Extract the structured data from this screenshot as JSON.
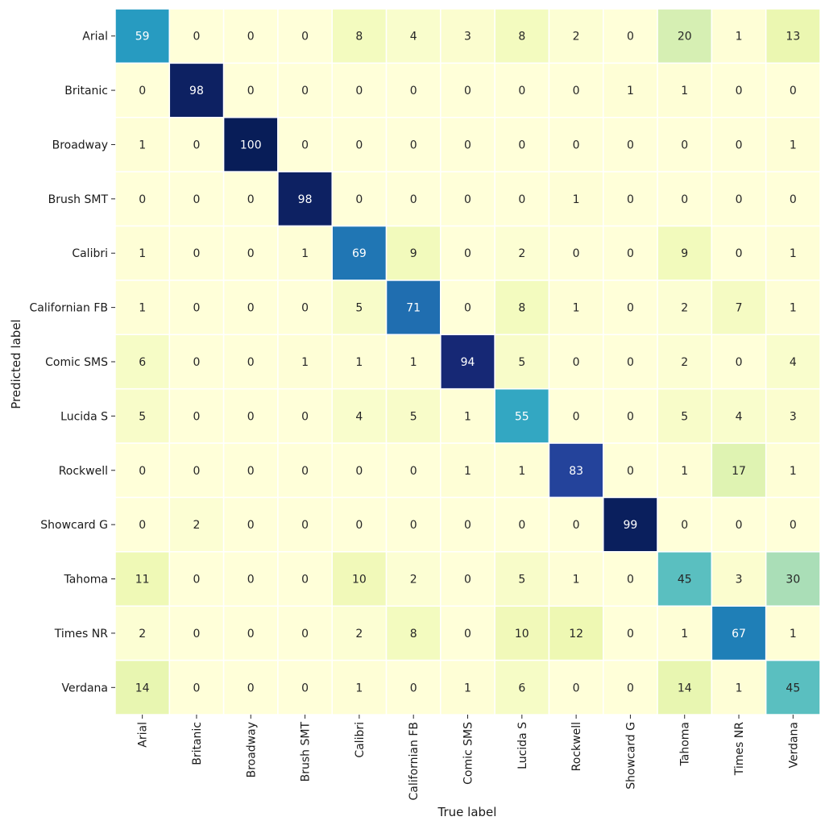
{
  "chart_data": {
    "type": "heatmap",
    "title": "",
    "xlabel": "True label",
    "ylabel": "Predicted label",
    "x_categories": [
      "Arial",
      "Britanic",
      "Broadway",
      "Brush SMT",
      "Calibri",
      "Californian FB",
      "Comic SMS",
      "Lucida S",
      "Rockwell",
      "Showcard G",
      "Tahoma",
      "Times NR",
      "Verdana"
    ],
    "y_categories": [
      "Arial",
      "Britanic",
      "Broadway",
      "Brush SMT",
      "Calibri",
      "Californian FB",
      "Comic SMS",
      "Lucida S",
      "Rockwell",
      "Showcard G",
      "Tahoma",
      "Times NR",
      "Verdana"
    ],
    "values": [
      [
        59,
        0,
        0,
        0,
        8,
        4,
        3,
        8,
        2,
        0,
        20,
        1,
        13
      ],
      [
        0,
        98,
        0,
        0,
        0,
        0,
        0,
        0,
        0,
        1,
        1,
        0,
        0
      ],
      [
        1,
        0,
        100,
        0,
        0,
        0,
        0,
        0,
        0,
        0,
        0,
        0,
        1
      ],
      [
        0,
        0,
        0,
        98,
        0,
        0,
        0,
        0,
        1,
        0,
        0,
        0,
        0
      ],
      [
        1,
        0,
        0,
        1,
        69,
        9,
        0,
        2,
        0,
        0,
        9,
        0,
        1
      ],
      [
        1,
        0,
        0,
        0,
        5,
        71,
        0,
        8,
        1,
        0,
        2,
        7,
        1
      ],
      [
        6,
        0,
        0,
        1,
        1,
        1,
        94,
        5,
        0,
        0,
        2,
        0,
        4
      ],
      [
        5,
        0,
        0,
        0,
        4,
        5,
        1,
        55,
        0,
        0,
        5,
        4,
        3
      ],
      [
        0,
        0,
        0,
        0,
        0,
        0,
        1,
        1,
        83,
        0,
        1,
        17,
        1
      ],
      [
        0,
        2,
        0,
        0,
        0,
        0,
        0,
        0,
        0,
        99,
        0,
        0,
        0
      ],
      [
        11,
        0,
        0,
        0,
        10,
        2,
        0,
        5,
        1,
        0,
        45,
        3,
        30
      ],
      [
        2,
        0,
        0,
        0,
        2,
        8,
        0,
        10,
        12,
        0,
        1,
        67,
        1
      ],
      [
        14,
        0,
        0,
        0,
        1,
        0,
        1,
        6,
        0,
        0,
        14,
        1,
        45
      ]
    ],
    "value_range": [
      0,
      100
    ],
    "colormap": "YlGnBu",
    "show_colorbar": false,
    "annotated": true
  }
}
